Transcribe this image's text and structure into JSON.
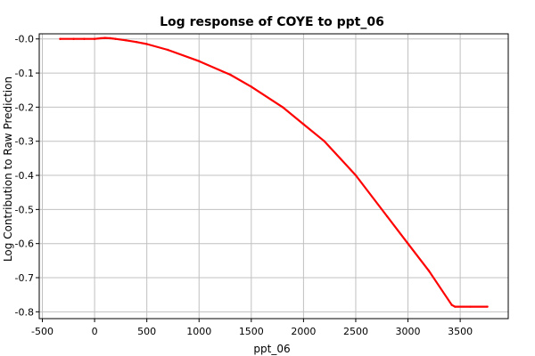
{
  "chart_data": {
    "type": "line",
    "title": "Log response of COYE to ppt_06",
    "xlabel": "ppt_06",
    "ylabel": "Log Contribution to Raw Prediction",
    "xlim": [
      -530,
      3960
    ],
    "ylim": [
      -0.82,
      0.015
    ],
    "x_ticks": [
      -500,
      0,
      500,
      1000,
      1500,
      2000,
      2500,
      3000,
      3500
    ],
    "y_ticks": [
      -0.8,
      -0.7,
      -0.6,
      -0.5,
      -0.4,
      -0.3,
      -0.2,
      -0.1,
      -0.0
    ],
    "x_tick_labels": [
      "-500",
      "0",
      "500",
      "1000",
      "1500",
      "2000",
      "2500",
      "3000",
      "3500"
    ],
    "y_tick_labels": [
      "-0.8",
      "-0.7",
      "-0.6",
      "-0.5",
      "-0.4",
      "-0.3",
      "-0.2",
      "-0.1",
      "-0.0"
    ],
    "grid": true,
    "line_color": "#ff0000",
    "series": [
      {
        "x": [
          -330,
          -200,
          -100,
          0,
          60,
          100,
          150,
          200,
          300,
          400,
          500,
          700,
          1000,
          1300,
          1500,
          1800,
          2000,
          2200,
          2500,
          2800,
          3000,
          3200,
          3420,
          3450,
          3600,
          3760
        ],
        "values": [
          0.0,
          0.0,
          0.0,
          0.0,
          0.002,
          0.003,
          0.002,
          0.0,
          -0.004,
          -0.009,
          -0.015,
          -0.032,
          -0.065,
          -0.105,
          -0.14,
          -0.2,
          -0.25,
          -0.3,
          -0.4,
          -0.52,
          -0.6,
          -0.68,
          -0.78,
          -0.785,
          -0.785,
          -0.785
        ]
      }
    ]
  }
}
